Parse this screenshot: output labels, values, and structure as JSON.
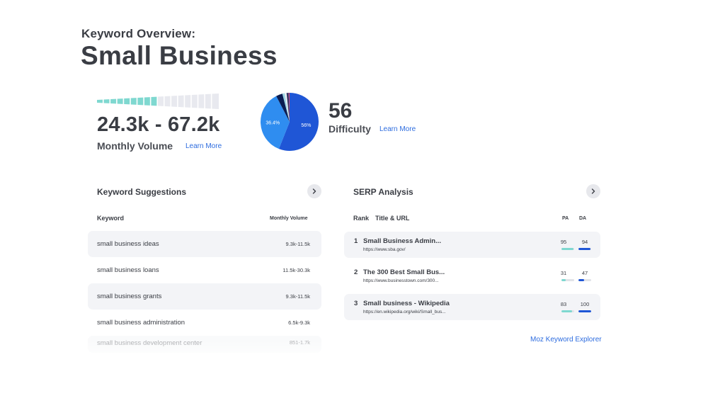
{
  "header": {
    "subtitle": "Keyword Overview:",
    "title": "Small Business"
  },
  "volume": {
    "value": "24.3k - 67.2k",
    "label": "Monthly Volume",
    "learn_more": "Learn More",
    "meter_level": 0.53,
    "colors": {
      "filled": "#7fd8d0",
      "empty": "#e8e9ef"
    }
  },
  "difficulty": {
    "value": "56",
    "label": "Difficulty",
    "learn_more": "Learn More",
    "pie": [
      {
        "label": "56%",
        "value": 56,
        "color": "#1f56d6"
      },
      {
        "label": "36.4%",
        "value": 36.4,
        "color": "#2f8df0"
      },
      {
        "label": "",
        "value": 3.6,
        "color": "#0b1d52"
      },
      {
        "label": "",
        "value": 1.4,
        "color": "#9fd6e4"
      },
      {
        "label": "",
        "value": 0.9,
        "color": "#f5f5f7"
      },
      {
        "label": "",
        "value": 1.2,
        "color": "#33386a"
      },
      {
        "label": "",
        "value": 0.5,
        "color": "#d4426a"
      }
    ]
  },
  "suggestions": {
    "title": "Keyword Suggestions",
    "col_keyword": "Keyword",
    "col_volume": "Monthly Volume",
    "rows": [
      {
        "keyword": "small business ideas",
        "volume": "9.3k-11.5k"
      },
      {
        "keyword": "small business loans",
        "volume": "11.5k-30.3k"
      },
      {
        "keyword": "small business grants",
        "volume": "9.3k-11.5k"
      },
      {
        "keyword": "small business administration",
        "volume": "6.5k-9.3k"
      },
      {
        "keyword": "small business development center",
        "volume": "851-1.7k"
      }
    ]
  },
  "serp": {
    "title": "SERP Analysis",
    "col_rank": "Rank",
    "col_title": "Title & URL",
    "col_pa": "PA",
    "col_da": "DA",
    "rows": [
      {
        "rank": "1",
        "title": "Small Business Admin...",
        "url": "https://www.sba.gov/",
        "pa": 95,
        "da": 94
      },
      {
        "rank": "2",
        "title": "The 300 Best Small Bus...",
        "url": "https://www.businesstown.com/300...",
        "pa": 31,
        "da": 47
      },
      {
        "rank": "3",
        "title": "Small business - Wikipedia",
        "url": "https://en.wikipedia.org/wiki/Small_bus...",
        "pa": 83,
        "da": 100
      }
    ],
    "link": "Moz Keyword Explorer"
  },
  "icons": {
    "next": "chevron-right-icon"
  }
}
